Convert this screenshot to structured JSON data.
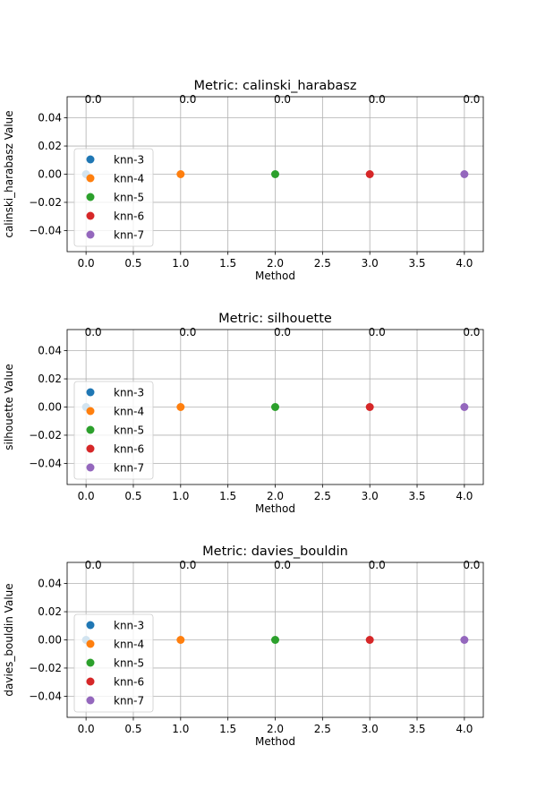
{
  "chart_data": [
    {
      "type": "scatter",
      "title": "Metric: calinski_harabasz",
      "xlabel": "Method",
      "ylabel": "calinski_harabasz Value",
      "xlim": [
        -0.2,
        4.2
      ],
      "ylim": [
        -0.055,
        0.055
      ],
      "xticks": [
        "0.0",
        "0.5",
        "1.0",
        "1.5",
        "2.0",
        "2.5",
        "3.0",
        "3.5",
        "4.0"
      ],
      "yticks": [
        "−0.04",
        "−0.02",
        "0.00",
        "0.02",
        "0.04"
      ],
      "grid": true,
      "legend": "center-left",
      "series": [
        {
          "name": "knn-3",
          "color": "#1f77b4",
          "x": [
            0
          ],
          "y": [
            0.0
          ],
          "label": "0.0"
        },
        {
          "name": "knn-4",
          "color": "#ff7f0e",
          "x": [
            1
          ],
          "y": [
            0.0
          ],
          "label": "0.0"
        },
        {
          "name": "knn-5",
          "color": "#2ca02c",
          "x": [
            2
          ],
          "y": [
            0.0
          ],
          "label": "0.0"
        },
        {
          "name": "knn-6",
          "color": "#d62728",
          "x": [
            3
          ],
          "y": [
            0.0
          ],
          "label": "0.0"
        },
        {
          "name": "knn-7",
          "color": "#9467bd",
          "x": [
            4
          ],
          "y": [
            0.0
          ],
          "label": "0.0"
        }
      ]
    },
    {
      "type": "scatter",
      "title": "Metric: silhouette",
      "xlabel": "Method",
      "ylabel": "silhouette Value",
      "xlim": [
        -0.2,
        4.2
      ],
      "ylim": [
        -0.055,
        0.055
      ],
      "xticks": [
        "0.0",
        "0.5",
        "1.0",
        "1.5",
        "2.0",
        "2.5",
        "3.0",
        "3.5",
        "4.0"
      ],
      "yticks": [
        "−0.04",
        "−0.02",
        "0.00",
        "0.02",
        "0.04"
      ],
      "grid": true,
      "legend": "center-left",
      "series": [
        {
          "name": "knn-3",
          "color": "#1f77b4",
          "x": [
            0
          ],
          "y": [
            0.0
          ],
          "label": "0.0"
        },
        {
          "name": "knn-4",
          "color": "#ff7f0e",
          "x": [
            1
          ],
          "y": [
            0.0
          ],
          "label": "0.0"
        },
        {
          "name": "knn-5",
          "color": "#2ca02c",
          "x": [
            2
          ],
          "y": [
            0.0
          ],
          "label": "0.0"
        },
        {
          "name": "knn-6",
          "color": "#d62728",
          "x": [
            3
          ],
          "y": [
            0.0
          ],
          "label": "0.0"
        },
        {
          "name": "knn-7",
          "color": "#9467bd",
          "x": [
            4
          ],
          "y": [
            0.0
          ],
          "label": "0.0"
        }
      ]
    },
    {
      "type": "scatter",
      "title": "Metric: davies_bouldin",
      "xlabel": "Method",
      "ylabel": "davies_bouldin Value",
      "xlim": [
        -0.2,
        4.2
      ],
      "ylim": [
        -0.055,
        0.055
      ],
      "xticks": [
        "0.0",
        "0.5",
        "1.0",
        "1.5",
        "2.0",
        "2.5",
        "3.0",
        "3.5",
        "4.0"
      ],
      "yticks": [
        "−0.04",
        "−0.02",
        "0.00",
        "0.02",
        "0.04"
      ],
      "grid": true,
      "legend": "center-left",
      "series": [
        {
          "name": "knn-3",
          "color": "#1f77b4",
          "x": [
            0
          ],
          "y": [
            0.0
          ],
          "label": "0.0"
        },
        {
          "name": "knn-4",
          "color": "#ff7f0e",
          "x": [
            1
          ],
          "y": [
            0.0
          ],
          "label": "0.0"
        },
        {
          "name": "knn-5",
          "color": "#2ca02c",
          "x": [
            2
          ],
          "y": [
            0.0
          ],
          "label": "0.0"
        },
        {
          "name": "knn-6",
          "color": "#d62728",
          "x": [
            3
          ],
          "y": [
            0.0
          ],
          "label": "0.0"
        },
        {
          "name": "knn-7",
          "color": "#9467bd",
          "x": [
            4
          ],
          "y": [
            0.0
          ],
          "label": "0.0"
        }
      ]
    }
  ]
}
